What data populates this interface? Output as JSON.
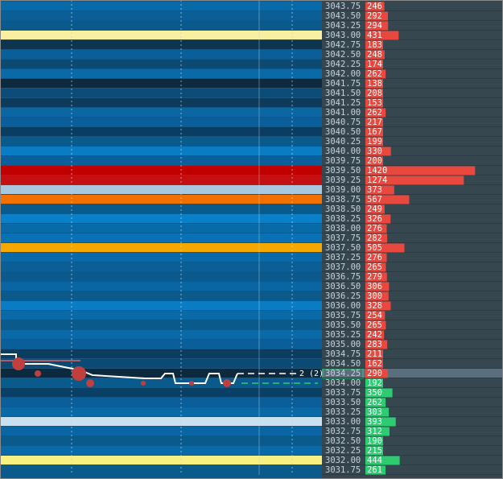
{
  "ladder": {
    "rows": [
      {
        "price": "3043.75",
        "volume": 246,
        "heat": "#0a6aa8",
        "bar_color": "#e8483e"
      },
      {
        "price": "3043.50",
        "volume": 292,
        "heat": "#0b5e96",
        "bar_color": "#e8483e"
      },
      {
        "price": "3043.25",
        "volume": 294,
        "heat": "#0a5a8c",
        "bar_color": "#e8483e"
      },
      {
        "price": "3043.00",
        "volume": 431,
        "heat": "#f8f0a0",
        "bar_color": "#e8483e"
      },
      {
        "price": "3042.75",
        "volume": 183,
        "heat": "#0d3550",
        "bar_color": "#e8483e"
      },
      {
        "price": "3042.50",
        "volume": 248,
        "heat": "#0a5f9a",
        "bar_color": "#e8483e"
      },
      {
        "price": "3042.25",
        "volume": 174,
        "heat": "#0c4a73",
        "bar_color": "#e8483e"
      },
      {
        "price": "3042.00",
        "volume": 262,
        "heat": "#0a6aa8",
        "bar_color": "#e8483e"
      },
      {
        "price": "3041.75",
        "volume": 138,
        "heat": "#0d2a3e",
        "bar_color": "#e8483e"
      },
      {
        "price": "3041.50",
        "volume": 208,
        "heat": "#0c4c78",
        "bar_color": "#e8483e"
      },
      {
        "price": "3041.25",
        "volume": 153,
        "heat": "#0c3b5c",
        "bar_color": "#e8483e"
      },
      {
        "price": "3041.00",
        "volume": 262,
        "heat": "#0b66a2",
        "bar_color": "#e8483e"
      },
      {
        "price": "3040.75",
        "volume": 217,
        "heat": "#0a5f9a",
        "bar_color": "#e8483e"
      },
      {
        "price": "3040.50",
        "volume": 167,
        "heat": "#0b3d60",
        "bar_color": "#e8483e"
      },
      {
        "price": "3040.25",
        "volume": 199,
        "heat": "#0a5a8c",
        "bar_color": "#e8483e"
      },
      {
        "price": "3040.00",
        "volume": 330,
        "heat": "#0a7cc4",
        "bar_color": "#e8483e"
      },
      {
        "price": "3039.75",
        "volume": 200,
        "heat": "#0a5f9a",
        "bar_color": "#e8483e"
      },
      {
        "price": "3039.50",
        "volume": 1420,
        "heat": "#c00000",
        "bar_color": "#e8483e"
      },
      {
        "price": "3039.25",
        "volume": 1274,
        "heat": "#c41010",
        "bar_color": "#e8483e"
      },
      {
        "price": "3039.00",
        "volume": 373,
        "heat": "#a8c8e0",
        "bar_color": "#e8483e"
      },
      {
        "price": "3038.75",
        "volume": 567,
        "heat": "#f07000",
        "bar_color": "#e8483e"
      },
      {
        "price": "3038.50",
        "volume": 249,
        "heat": "#0a5a8c",
        "bar_color": "#e8483e"
      },
      {
        "price": "3038.25",
        "volume": 326,
        "heat": "#0a80c8",
        "bar_color": "#e8483e"
      },
      {
        "price": "3038.00",
        "volume": 276,
        "heat": "#0a6aa8",
        "bar_color": "#e8483e"
      },
      {
        "price": "3037.75",
        "volume": 282,
        "heat": "#0a72b4",
        "bar_color": "#e8483e"
      },
      {
        "price": "3037.50",
        "volume": 505,
        "heat": "#f5a800",
        "bar_color": "#e8483e"
      },
      {
        "price": "3037.25",
        "volume": 276,
        "heat": "#0a6aa8",
        "bar_color": "#e8483e"
      },
      {
        "price": "3037.00",
        "volume": 265,
        "heat": "#0b5e96",
        "bar_color": "#e8483e"
      },
      {
        "price": "3036.75",
        "volume": 279,
        "heat": "#0a5a8c",
        "bar_color": "#e8483e"
      },
      {
        "price": "3036.50",
        "volume": 306,
        "heat": "#0a66a2",
        "bar_color": "#e8483e"
      },
      {
        "price": "3036.25",
        "volume": 300,
        "heat": "#0a5a8c",
        "bar_color": "#e8483e"
      },
      {
        "price": "3036.00",
        "volume": 328,
        "heat": "#0a7cc4",
        "bar_color": "#e8483e"
      },
      {
        "price": "3035.75",
        "volume": 254,
        "heat": "#0a6aa8",
        "bar_color": "#e8483e"
      },
      {
        "price": "3035.50",
        "volume": 265,
        "heat": "#0a5a8c",
        "bar_color": "#e8483e"
      },
      {
        "price": "3035.25",
        "volume": 242,
        "heat": "#0a6aa8",
        "bar_color": "#e8483e"
      },
      {
        "price": "3035.00",
        "volume": 283,
        "heat": "#0a5f9a",
        "bar_color": "#e8483e"
      },
      {
        "price": "3034.75",
        "volume": 211,
        "heat": "#0b3d60",
        "bar_color": "#e8483e"
      },
      {
        "price": "3034.50",
        "volume": 162,
        "heat": "#0a4a75",
        "bar_color": "#e8483e"
      },
      {
        "price": "3034.25",
        "volume": 290,
        "heat": "#0b2a40",
        "bar_color": "#e8483e"
      },
      {
        "price": "3034.00",
        "volume": 192,
        "heat": "#0a5a8c",
        "bar_color": "#2ecc71"
      },
      {
        "price": "3033.75",
        "volume": 350,
        "heat": "#0a3f66",
        "bar_color": "#2ecc71"
      },
      {
        "price": "3033.50",
        "volume": 262,
        "heat": "#0a5f9a",
        "bar_color": "#2ecc71"
      },
      {
        "price": "3033.25",
        "volume": 303,
        "heat": "#0a6aa8",
        "bar_color": "#2ecc71"
      },
      {
        "price": "3033.00",
        "volume": 393,
        "heat": "#c8e0f0",
        "bar_color": "#2ecc71"
      },
      {
        "price": "3032.75",
        "volume": 312,
        "heat": "#0a66a2",
        "bar_color": "#2ecc71"
      },
      {
        "price": "3032.50",
        "volume": 190,
        "heat": "#0a5a8c",
        "bar_color": "#2ecc71"
      },
      {
        "price": "3032.25",
        "volume": 215,
        "heat": "#0a6aa8",
        "bar_color": "#2ecc71"
      },
      {
        "price": "3032.00",
        "volume": 444,
        "heat": "#f8f080",
        "bar_color": "#2ecc71"
      },
      {
        "price": "3031.75",
        "volume": 261,
        "heat": "#0a5a8c",
        "bar_color": "#2ecc71"
      }
    ],
    "order_label": "2 (2)"
  }
}
